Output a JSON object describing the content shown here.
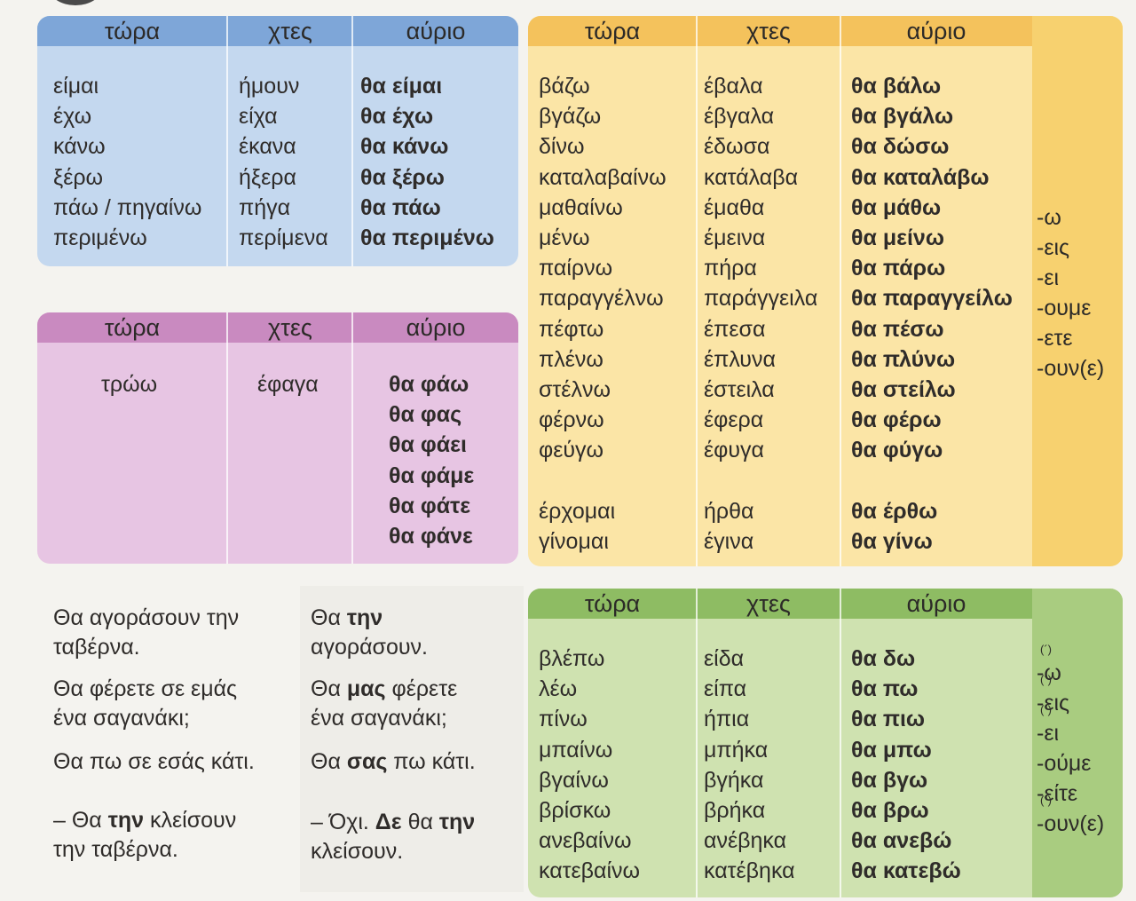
{
  "headers": {
    "now": "τώρα",
    "yesterday": "χτες",
    "tomorrow": "αύριο"
  },
  "blue_table": {
    "now": [
      "είμαι",
      "έχω",
      "κάνω",
      "ξέρω",
      "πάω / πηγαίνω",
      "περιμένω"
    ],
    "yesterday": [
      "ήμουν",
      "είχα",
      "έκανα",
      "ήξερα",
      "πήγα",
      "περίμενα"
    ],
    "tomorrow": [
      "θα είμαι",
      "θα έχω",
      "θα κάνω",
      "θα ξέρω",
      "θα πάω",
      "θα περιμένω"
    ]
  },
  "pink_table": {
    "now": [
      "τρώω"
    ],
    "yesterday": [
      "έφαγα"
    ],
    "tomorrow": [
      "θα φάω",
      "θα φας",
      "θα φάει",
      "θα φάμε",
      "θα φάτε",
      "θα φάνε"
    ]
  },
  "yellow_table": {
    "now": [
      "βάζω",
      "βγάζω",
      "δίνω",
      "καταλαβαίνω",
      "μαθαίνω",
      "μένω",
      "παίρνω",
      "παραγγέλνω",
      "πέφτω",
      "πλένω",
      "στέλνω",
      "φέρνω",
      "φεύγω",
      "",
      "έρχομαι",
      "γίνομαι"
    ],
    "yesterday": [
      "έβαλα",
      "έβγαλα",
      "έδωσα",
      "κατάλαβα",
      "έμαθα",
      "έμεινα",
      "πήρα",
      "παράγγειλα",
      "έπεσα",
      "έπλυνα",
      "έστειλα",
      "έφερα",
      "έφυγα",
      "",
      "ήρθα",
      "έγινα"
    ],
    "tomorrow": [
      "θα βάλω",
      "θα βγάλω",
      "θα δώσω",
      "θα καταλάβω",
      "θα μάθω",
      "θα μείνω",
      "θα πάρω",
      "θα παραγγείλω",
      "θα πέσω",
      "θα πλύνω",
      "θα στείλω",
      "θα φέρω",
      "θα φύγω",
      "",
      "θα έρθω",
      "θα γίνω"
    ],
    "endings": [
      "-ω",
      "-εις",
      "-ει",
      "-ουμε",
      "-ετε",
      "-ουν(ε)"
    ]
  },
  "green_table": {
    "now": [
      "βλέπω",
      "λέω",
      "πίνω",
      "μπαίνω",
      "βγαίνω",
      "βρίσκω",
      "ανεβαίνω",
      "κατεβαίνω"
    ],
    "yesterday": [
      "είδα",
      "είπα",
      "ήπια",
      "μπήκα",
      "βγήκα",
      "βρήκα",
      "ανέβηκα",
      "κατέβηκα"
    ],
    "tomorrow": [
      "θα δω",
      "θα πω",
      "θα πιω",
      "θα μπω",
      "θα βγω",
      "θα βρω",
      "θα ανεβώ",
      "θα κατεβώ"
    ],
    "endings": [
      "-ω",
      "-εις",
      "-ει",
      "-ούμε",
      "-είτε",
      "-ουν(ε)"
    ]
  },
  "sentences_left": [
    {
      "line1": "Θα αγοράσουν την",
      "line2": "ταβέρνα."
    },
    {
      "line1": "Θα φέρετε σε εμάς",
      "line2": "ένα σαγανάκι;"
    },
    {
      "line1": "Θα πω σε εσάς κάτι.",
      "line2": ""
    },
    {
      "line1_a": "– Θα ",
      "line1_b": "την",
      "line1_c": " κλείσουν",
      "line2": "την ταβέρνα."
    }
  ],
  "sentences_right": [
    {
      "a": "Θα ",
      "b": "την",
      "line2": "αγοράσουν."
    },
    {
      "a": "Θα ",
      "b": "μας",
      "c": " φέρετε",
      "line2": "ένα σαγανάκι;"
    },
    {
      "a": "Θα ",
      "b": "σας",
      "c": " πω κάτι."
    },
    {
      "a": "– Όχι. ",
      "b": "Δε",
      "c": " θα ",
      "d": "την",
      "line2": "κλείσουν."
    }
  ],
  "colors": {
    "blue_header": "#7ea6d8",
    "blue_body": "#c4d8ef",
    "pink_header": "#c98ac0",
    "pink_body": "#e7c5e3",
    "yellow_header": "#f4c25c",
    "yellow_body": "#fbe5a6",
    "yellow_side": "#f7d16f",
    "green_header": "#8ebc63",
    "green_body": "#cfe2b0",
    "green_side": "#a9cc80"
  }
}
